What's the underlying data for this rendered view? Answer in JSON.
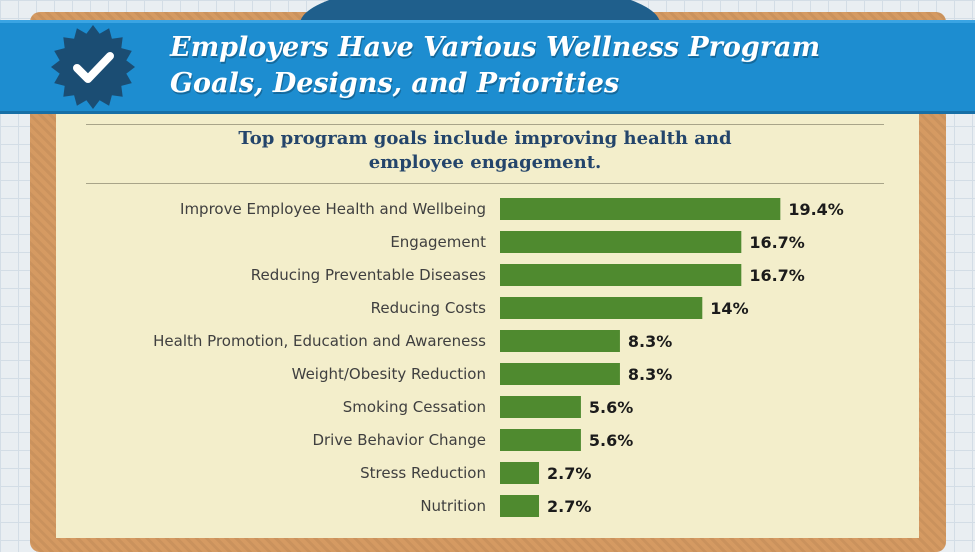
{
  "header": {
    "title_line1": "Employers Have Various Wellness Program",
    "title_line2": "Goals, Designs, and Priorities"
  },
  "colors": {
    "banner": "#1d8dd0",
    "badge": "#1b4d73",
    "bar": "#4f8a2f",
    "frame": "#d59a62",
    "paper": "#f3eecb",
    "subtitle": "#24456b"
  },
  "chart_data": {
    "type": "bar",
    "orientation": "horizontal",
    "title_line1": "Top program goals include improving health and",
    "title_line2": "employee engagement.",
    "categories": [
      "Improve Employee Health and Wellbeing",
      "Engagement",
      "Reducing Preventable Diseases",
      "Reducing Costs",
      "Health Promotion, Education and Awareness",
      "Weight/Obesity Reduction",
      "Smoking Cessation",
      "Drive Behavior Change",
      "Stress Reduction",
      "Nutrition"
    ],
    "values": [
      19.4,
      16.7,
      16.7,
      14,
      8.3,
      8.3,
      5.6,
      5.6,
      2.7,
      2.7
    ],
    "value_labels": [
      "19.4%",
      "16.7%",
      "16.7%",
      "14%",
      "8.3%",
      "8.3%",
      "5.6%",
      "5.6%",
      "2.7%",
      "2.7%"
    ],
    "grid": false,
    "legend": "none"
  }
}
